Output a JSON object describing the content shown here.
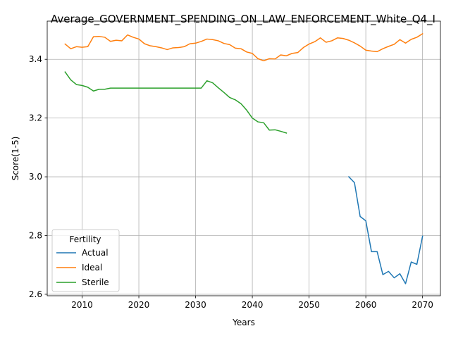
{
  "chart_data": {
    "type": "line",
    "title": "Average_GOVERNMENT_SPENDING_ON_LAW_ENFORCEMENT_White_Q4_I",
    "xlabel": "Years",
    "ylabel": "Score(1-5)",
    "xlim": [
      2003.85,
      2073.15
    ],
    "ylim": [
      2.595,
      3.53
    ],
    "xticks": [
      2010,
      2020,
      2030,
      2040,
      2050,
      2060,
      2070
    ],
    "yticks": [
      2.6,
      2.8,
      3.0,
      3.2,
      3.4
    ],
    "ytick_labels": [
      "2.6",
      "2.8",
      "3.0",
      "3.2",
      "3.4"
    ],
    "grid": true,
    "legend": {
      "title": "Fertility",
      "location": "lower-left"
    },
    "series": [
      {
        "name": "Actual",
        "color": "#1f77b4",
        "x": [
          2057,
          2058,
          2059,
          2060,
          2061,
          2062,
          2063,
          2064,
          2065,
          2066,
          2067,
          2068,
          2069,
          2070
        ],
        "y": [
          3.0,
          2.98,
          2.865,
          2.85,
          2.745,
          2.745,
          2.667,
          2.678,
          2.656,
          2.67,
          2.636,
          2.71,
          2.702,
          2.798
        ]
      },
      {
        "name": "Ideal",
        "color": "#ff7f0e",
        "x": [
          2007,
          2008,
          2009,
          2010,
          2011,
          2012,
          2013,
          2014,
          2015,
          2016,
          2017,
          2018,
          2019,
          2020,
          2021,
          2022,
          2023,
          2024,
          2025,
          2026,
          2027,
          2028,
          2029,
          2030,
          2031,
          2032,
          2033,
          2034,
          2035,
          2036,
          2037,
          2038,
          2039,
          2040,
          2041,
          2042,
          2043,
          2044,
          2045,
          2046,
          2047,
          2048,
          2049,
          2050,
          2051,
          2052,
          2053,
          2054,
          2055,
          2056,
          2057,
          2058,
          2059,
          2060,
          2061,
          2062,
          2063,
          2064,
          2065,
          2066,
          2067,
          2068,
          2069,
          2070
        ],
        "y": [
          3.452,
          3.436,
          3.443,
          3.441,
          3.443,
          3.477,
          3.478,
          3.475,
          3.461,
          3.465,
          3.463,
          3.483,
          3.475,
          3.469,
          3.453,
          3.446,
          3.443,
          3.439,
          3.433,
          3.439,
          3.44,
          3.443,
          3.453,
          3.455,
          3.461,
          3.469,
          3.467,
          3.463,
          3.454,
          3.45,
          3.438,
          3.436,
          3.425,
          3.42,
          3.402,
          3.395,
          3.402,
          3.401,
          3.415,
          3.412,
          3.42,
          3.423,
          3.44,
          3.452,
          3.46,
          3.473,
          3.458,
          3.463,
          3.473,
          3.471,
          3.465,
          3.456,
          3.445,
          3.431,
          3.428,
          3.426,
          3.436,
          3.444,
          3.451,
          3.467,
          3.455,
          3.468,
          3.475,
          3.487
        ]
      },
      {
        "name": "Sterile",
        "color": "#2ca02c",
        "x": [
          2007,
          2008,
          2009,
          2010,
          2011,
          2012,
          2013,
          2014,
          2015,
          2016,
          2017,
          2018,
          2019,
          2020,
          2021,
          2022,
          2023,
          2024,
          2025,
          2026,
          2027,
          2028,
          2029,
          2030,
          2031,
          2032,
          2033,
          2034,
          2035,
          2036,
          2037,
          2038,
          2039,
          2040,
          2041,
          2042,
          2043,
          2044,
          2045,
          2046
        ],
        "y": [
          3.357,
          3.33,
          3.314,
          3.311,
          3.305,
          3.292,
          3.298,
          3.298,
          3.302,
          3.302,
          3.302,
          3.302,
          3.302,
          3.302,
          3.302,
          3.302,
          3.302,
          3.302,
          3.302,
          3.302,
          3.302,
          3.302,
          3.302,
          3.302,
          3.302,
          3.327,
          3.32,
          3.303,
          3.287,
          3.27,
          3.262,
          3.249,
          3.227,
          3.2,
          3.187,
          3.184,
          3.159,
          3.16,
          3.155,
          3.149
        ]
      }
    ]
  }
}
